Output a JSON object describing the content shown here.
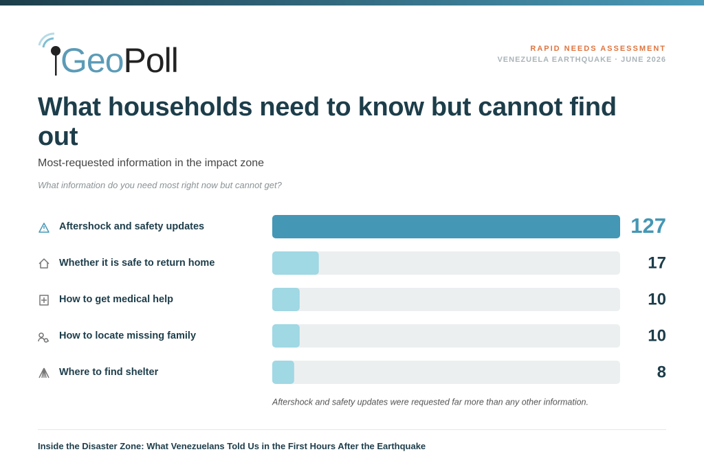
{
  "header": {
    "brand": [
      "Geo",
      "Poll"
    ],
    "kicker": "RAPID NEEDS ASSESSMENT",
    "context": "VENEZUELA EARTHQUAKE · JUNE 2026"
  },
  "chart_data": {
    "type": "bar",
    "orientation": "horizontal",
    "title": "What households need to know but cannot find out",
    "subtitle": "Most-requested information in the impact zone",
    "question": "What information do you need most right now but cannot get?",
    "categories": [
      "Aftershock and safety updates",
      "Whether it is safe to return home",
      "How to get medical help",
      "How to locate missing family",
      "Where to find shelter"
    ],
    "values": [
      127,
      17,
      10,
      10,
      8
    ],
    "colors": [
      "#4497b5",
      "#a0d8e4",
      "#a0d8e4",
      "#a0d8e4",
      "#a0d8e4"
    ],
    "track_color": "#eceff0",
    "xlim": [
      0,
      127
    ],
    "annotation": "Aftershock and safety updates were requested far more than any other information."
  },
  "footer": {
    "text": "Inside the Disaster Zone: What Venezuelans Told Us in the First Hours After the Earthquake"
  }
}
